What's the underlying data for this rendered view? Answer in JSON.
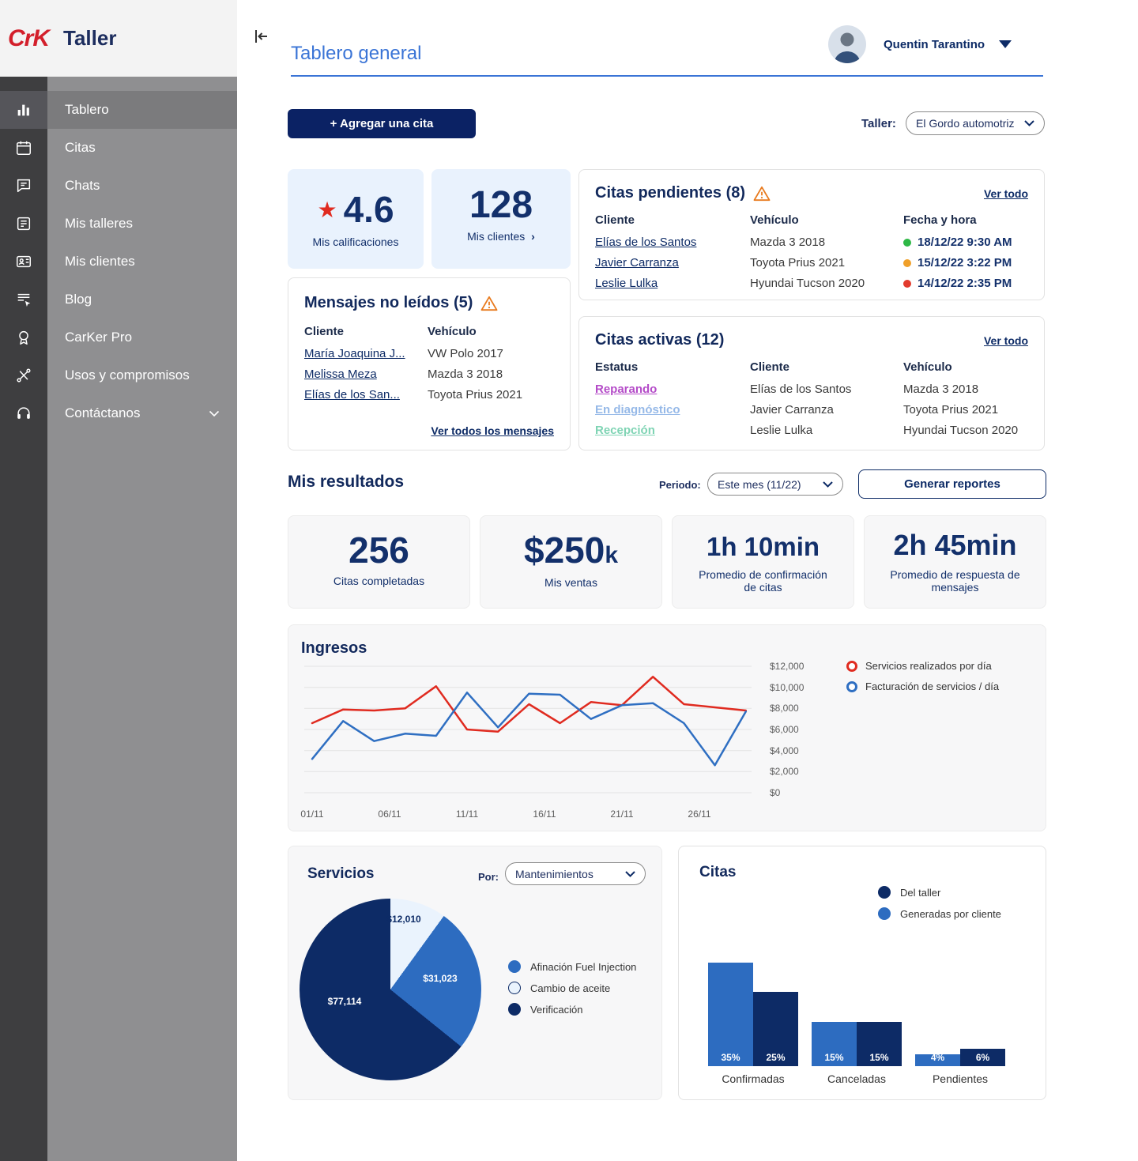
{
  "brand": {
    "logo_text": "CrK",
    "app_name": "Taller"
  },
  "sidebar": {
    "items": [
      {
        "label": "Tablero",
        "icon": "dashboard",
        "active": true
      },
      {
        "label": "Citas",
        "icon": "calendar",
        "active": false
      },
      {
        "label": "Chats",
        "icon": "chat",
        "active": false
      },
      {
        "label": "Mis talleres",
        "icon": "workshops",
        "active": false
      },
      {
        "label": "Mis clientes",
        "icon": "clients",
        "active": false
      },
      {
        "label": "Blog",
        "icon": "blog",
        "active": false
      },
      {
        "label": "CarKer Pro",
        "icon": "badge",
        "active": false
      },
      {
        "label": "Usos y compromisos",
        "icon": "tools",
        "active": false
      },
      {
        "label": "Contáctanos",
        "icon": "headset",
        "active": false,
        "has_chevron": true
      }
    ]
  },
  "header": {
    "title": "Tablero general",
    "user_name": "Quentin Tarantino"
  },
  "toolbar": {
    "add_button": "+ Agregar una cita",
    "taller_label": "Taller:",
    "taller_value": "El Gordo automotriz"
  },
  "stats": {
    "rating": {
      "value": "4.6",
      "label": "Mis calificaciones"
    },
    "clients": {
      "value": "128",
      "label": "Mis clientes",
      "chevron": "›"
    }
  },
  "pending": {
    "title": "Citas pendientes (8)",
    "link": "Ver todo",
    "columns": [
      "Cliente",
      "Vehículo",
      "Fecha y hora"
    ],
    "rows": [
      {
        "cliente": "Elías de los Santos",
        "vehiculo": "Mazda 3 2018",
        "fecha": "18/12/22 9:30 AM",
        "dot_color": "#2eb846"
      },
      {
        "cliente": "Javier Carranza",
        "vehiculo": "Toyota Prius 2021",
        "fecha": "15/12/22 3:22 PM",
        "dot_color": "#f0a02a"
      },
      {
        "cliente": "Leslie Lulka",
        "vehiculo": "Hyundai Tucson 2020",
        "fecha": "14/12/22 2:35 PM",
        "dot_color": "#e23b2e"
      }
    ]
  },
  "messages": {
    "title": "Mensajes no leídos (5)",
    "columns": [
      "Cliente",
      "Vehículo"
    ],
    "rows": [
      {
        "cliente": "María Joaquina J...",
        "vehiculo": "VW Polo 2017"
      },
      {
        "cliente": "Melissa Meza",
        "vehiculo": "Mazda 3 2018"
      },
      {
        "cliente": "Elías de los San...",
        "vehiculo": "Toyota Prius 2021"
      }
    ],
    "link": "Ver todos los mensajes"
  },
  "active": {
    "title": "Citas activas (12)",
    "link": "Ver todo",
    "columns": [
      "Estatus",
      "Cliente",
      "Vehículo"
    ],
    "rows": [
      {
        "estatus": "Reparando",
        "color": "#b44bc8",
        "cliente": "Elías de los Santos",
        "vehiculo": "Mazda 3 2018"
      },
      {
        "estatus": "En diagnóstico",
        "color": "#96b9e8",
        "cliente": "Javier Carranza",
        "vehiculo": "Toyota Prius 2021"
      },
      {
        "estatus": "Recepción",
        "color": "#7fd4b4",
        "cliente": "Leslie Lulka",
        "vehiculo": "Hyundai Tucson 2020"
      }
    ]
  },
  "results": {
    "heading": "Mis resultados",
    "periodo_label": "Periodo:",
    "periodo_value": "Este mes (11/22)",
    "report_button": "Generar reportes",
    "cards": [
      {
        "value": "256",
        "suffix": "",
        "label": "Citas completadas"
      },
      {
        "value": "$250",
        "suffix": "k",
        "label": "Mis ventas"
      },
      {
        "value": "1h 10min",
        "suffix": "",
        "label": "Promedio de confirmación de citas"
      },
      {
        "value": "2h 45min",
        "suffix": "",
        "label": "Promedio de respuesta de mensajes"
      }
    ]
  },
  "servicios": {
    "heading": "Servicios",
    "por_label": "Por:",
    "select_value": "Mantenimientos"
  },
  "citas_chart": {
    "heading": "Citas"
  },
  "chart_data": [
    {
      "type": "line",
      "title": "Ingresos",
      "x_ticks": [
        "01/11",
        "06/11",
        "11/11",
        "16/11",
        "21/11",
        "26/11"
      ],
      "y_ticks": [
        "$12,000",
        "$10,000",
        "$8,000",
        "$6,000",
        "$4,000",
        "$2,000",
        "$0"
      ],
      "ylim": [
        0,
        12000
      ],
      "grid": true,
      "legend_position": "right",
      "days": [
        1,
        3,
        5,
        7,
        9,
        11,
        13,
        15,
        17,
        19,
        21,
        23,
        25,
        27,
        29
      ],
      "series": [
        {
          "name": "Servicios realizados por día",
          "color": "#e02b20",
          "values": [
            6600,
            7900,
            7800,
            8000,
            10100,
            6000,
            5800,
            8400,
            6600,
            8600,
            8300,
            11000,
            8400,
            8100,
            7800
          ]
        },
        {
          "name": "Facturación de servicios / día",
          "color": "#2f6fc2",
          "values": [
            3200,
            6800,
            4900,
            5600,
            5400,
            9500,
            6200,
            9400,
            9300,
            7000,
            8300,
            8500,
            6600,
            2600,
            7700
          ]
        }
      ]
    },
    {
      "type": "pie",
      "title": "Servicios (Mantenimientos)",
      "slices": [
        {
          "label": "Cambio de aceite",
          "value": 12010,
          "display": "$12,010",
          "color": "#eaf3fd"
        },
        {
          "label": "Afinación Fuel Injection",
          "value": 31023,
          "display": "$31,023",
          "color": "#2d6cc0"
        },
        {
          "label": "Verificación",
          "value": 77114,
          "display": "$77,114",
          "color": "#0d2b66"
        }
      ]
    },
    {
      "type": "bar",
      "title": "Citas",
      "categories": [
        "Confirmadas",
        "Canceladas",
        "Pendientes"
      ],
      "unit": "%",
      "series": [
        {
          "name": "Generadas por cliente",
          "color": "#2d6cc0",
          "values": [
            35,
            15,
            4
          ],
          "labels": [
            "35%",
            "15%",
            "4%"
          ]
        },
        {
          "name": "Del taller",
          "color": "#0d2b66",
          "values": [
            25,
            15,
            6
          ],
          "labels": [
            "25%",
            "15%",
            "6%"
          ]
        }
      ]
    }
  ]
}
